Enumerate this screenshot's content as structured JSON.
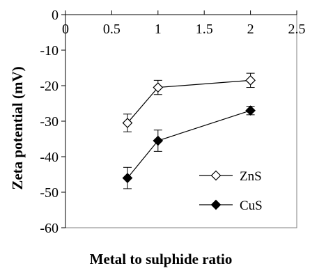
{
  "chart_data": {
    "type": "line",
    "xlabel": "Metal to sulphide ratio",
    "ylabel": "Zeta potential (mV)",
    "xlim": [
      0,
      2.5
    ],
    "ylim": [
      -60,
      0
    ],
    "x_ticks": [
      "0",
      "0.5",
      "1",
      "1.5",
      "2",
      "2.5"
    ],
    "y_ticks": [
      "0",
      "-10",
      "-20",
      "-30",
      "-40",
      "-50",
      "-60"
    ],
    "x_tick_values": [
      0,
      0.5,
      1,
      1.5,
      2,
      2.5
    ],
    "y_tick_values": [
      0,
      -10,
      -20,
      -30,
      -40,
      -50,
      -60
    ],
    "grid": false,
    "legend_position": "lower-right",
    "series": [
      {
        "name": "ZnS",
        "marker": "open-diamond",
        "color": "#000000",
        "x": [
          0.67,
          1,
          2
        ],
        "y": [
          -30.5,
          -20.5,
          -18.5
        ],
        "error": [
          2.5,
          2,
          2
        ]
      },
      {
        "name": "CuS",
        "marker": "filled-diamond",
        "color": "#000000",
        "x": [
          0.67,
          1,
          2
        ],
        "y": [
          -46,
          -35.5,
          -27
        ],
        "error": [
          3,
          3,
          1.2
        ]
      }
    ]
  }
}
